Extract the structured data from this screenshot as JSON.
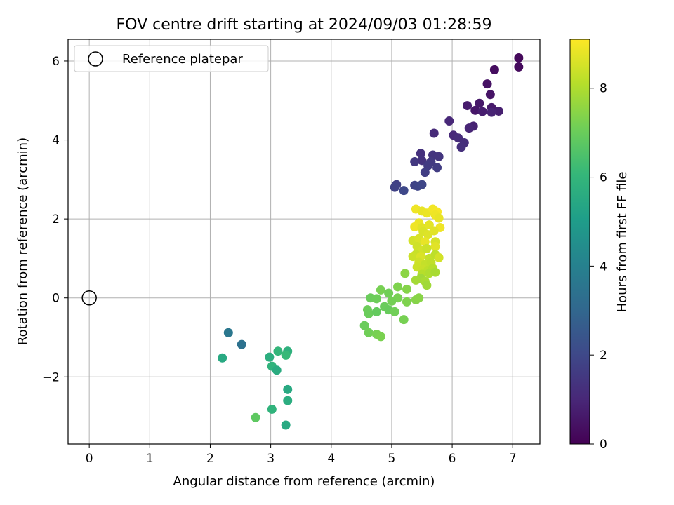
{
  "chart_data": {
    "type": "scatter",
    "title": "FOV centre drift starting at 2024/09/03 01:28:59",
    "xlabel": "Angular distance from reference (arcmin)",
    "ylabel": "Rotation from reference (arcmin)",
    "xlim": [
      -0.35,
      7.45
    ],
    "ylim": [
      -3.7,
      6.55
    ],
    "xticks": [
      0,
      1,
      2,
      3,
      4,
      5,
      6,
      7
    ],
    "yticks": [
      -2,
      0,
      2,
      4,
      6
    ],
    "grid": true,
    "legend": {
      "placement": "top-left",
      "entries": [
        "Reference platepar"
      ]
    },
    "reference_point": {
      "x": 0,
      "y": 0,
      "label": "Reference platepar"
    },
    "colorbar": {
      "label": "Hours from first FF file",
      "colormap": "viridis",
      "range": [
        0,
        9.1
      ],
      "ticks": [
        0,
        2,
        4,
        6,
        8
      ]
    },
    "colormap_stops": [
      "#440154",
      "#482878",
      "#3e4989",
      "#31688e",
      "#26828e",
      "#1f9e89",
      "#35b779",
      "#6ece58",
      "#b5de2b",
      "#fde725"
    ],
    "points": [
      {
        "x": 7.1,
        "y": 6.08,
        "c": 0.2
      },
      {
        "x": 7.1,
        "y": 5.85,
        "c": 0.25
      },
      {
        "x": 6.7,
        "y": 5.78,
        "c": 0.3
      },
      {
        "x": 6.58,
        "y": 5.42,
        "c": 0.45
      },
      {
        "x": 6.63,
        "y": 5.15,
        "c": 0.5
      },
      {
        "x": 6.45,
        "y": 4.93,
        "c": 0.6
      },
      {
        "x": 6.25,
        "y": 4.87,
        "c": 0.7
      },
      {
        "x": 6.38,
        "y": 4.75,
        "c": 0.55
      },
      {
        "x": 6.5,
        "y": 4.72,
        "c": 0.75
      },
      {
        "x": 6.65,
        "y": 4.82,
        "c": 0.65
      },
      {
        "x": 6.77,
        "y": 4.73,
        "c": 0.8
      },
      {
        "x": 6.65,
        "y": 4.7,
        "c": 0.9
      },
      {
        "x": 6.35,
        "y": 4.35,
        "c": 0.85
      },
      {
        "x": 6.28,
        "y": 4.3,
        "c": 0.95
      },
      {
        "x": 5.95,
        "y": 4.48,
        "c": 1.0
      },
      {
        "x": 5.7,
        "y": 4.17,
        "c": 1.1
      },
      {
        "x": 6.02,
        "y": 4.12,
        "c": 1.05
      },
      {
        "x": 6.1,
        "y": 4.05,
        "c": 1.15
      },
      {
        "x": 6.2,
        "y": 3.93,
        "c": 1.2
      },
      {
        "x": 6.15,
        "y": 3.82,
        "c": 1.25
      },
      {
        "x": 5.48,
        "y": 3.66,
        "c": 1.3
      },
      {
        "x": 5.68,
        "y": 3.62,
        "c": 1.4
      },
      {
        "x": 5.78,
        "y": 3.58,
        "c": 1.45
      },
      {
        "x": 5.38,
        "y": 3.45,
        "c": 1.5
      },
      {
        "x": 5.5,
        "y": 3.48,
        "c": 1.35
      },
      {
        "x": 5.65,
        "y": 3.45,
        "c": 1.55
      },
      {
        "x": 5.6,
        "y": 3.35,
        "c": 1.6
      },
      {
        "x": 5.75,
        "y": 3.3,
        "c": 1.65
      },
      {
        "x": 5.55,
        "y": 3.18,
        "c": 1.7
      },
      {
        "x": 5.08,
        "y": 2.87,
        "c": 1.75
      },
      {
        "x": 5.05,
        "y": 2.8,
        "c": 1.8
      },
      {
        "x": 5.38,
        "y": 2.85,
        "c": 1.85
      },
      {
        "x": 5.43,
        "y": 2.83,
        "c": 1.9
      },
      {
        "x": 5.5,
        "y": 2.87,
        "c": 1.95
      },
      {
        "x": 5.2,
        "y": 2.72,
        "c": 2.0
      },
      {
        "x": 2.3,
        "y": -0.88,
        "c": 3.6
      },
      {
        "x": 2.52,
        "y": -1.18,
        "c": 3.4
      },
      {
        "x": 2.2,
        "y": -1.52,
        "c": 5.5
      },
      {
        "x": 2.98,
        "y": -1.5,
        "c": 5.7
      },
      {
        "x": 3.12,
        "y": -1.35,
        "c": 6.0
      },
      {
        "x": 3.28,
        "y": -1.35,
        "c": 5.8
      },
      {
        "x": 3.25,
        "y": -1.45,
        "c": 6.1
      },
      {
        "x": 3.02,
        "y": -1.73,
        "c": 5.9
      },
      {
        "x": 3.1,
        "y": -1.83,
        "c": 5.6
      },
      {
        "x": 3.28,
        "y": -2.32,
        "c": 5.5
      },
      {
        "x": 3.28,
        "y": -2.6,
        "c": 5.65
      },
      {
        "x": 3.02,
        "y": -2.82,
        "c": 5.9
      },
      {
        "x": 2.75,
        "y": -3.03,
        "c": 6.8
      },
      {
        "x": 3.25,
        "y": -3.22,
        "c": 5.5
      },
      {
        "x": 5.22,
        "y": 0.62,
        "c": 7.5
      },
      {
        "x": 5.1,
        "y": 0.28,
        "c": 7.3
      },
      {
        "x": 5.25,
        "y": 0.22,
        "c": 7.4
      },
      {
        "x": 4.82,
        "y": 0.2,
        "c": 7.2
      },
      {
        "x": 4.95,
        "y": 0.12,
        "c": 7.1
      },
      {
        "x": 4.65,
        "y": 0.0,
        "c": 7.0
      },
      {
        "x": 4.75,
        "y": -0.02,
        "c": 7.05
      },
      {
        "x": 5.1,
        "y": 0.0,
        "c": 7.2
      },
      {
        "x": 5.25,
        "y": -0.1,
        "c": 7.3
      },
      {
        "x": 5.0,
        "y": -0.08,
        "c": 7.15
      },
      {
        "x": 5.4,
        "y": -0.05,
        "c": 7.4
      },
      {
        "x": 5.45,
        "y": 0.0,
        "c": 7.45
      },
      {
        "x": 4.88,
        "y": -0.22,
        "c": 7.0
      },
      {
        "x": 4.95,
        "y": -0.3,
        "c": 6.95
      },
      {
        "x": 5.05,
        "y": -0.35,
        "c": 7.1
      },
      {
        "x": 4.6,
        "y": -0.3,
        "c": 7.05
      },
      {
        "x": 4.62,
        "y": -0.4,
        "c": 7.0
      },
      {
        "x": 4.75,
        "y": -0.35,
        "c": 6.9
      },
      {
        "x": 5.2,
        "y": -0.55,
        "c": 7.2
      },
      {
        "x": 4.55,
        "y": -0.7,
        "c": 7.0
      },
      {
        "x": 4.62,
        "y": -0.88,
        "c": 7.1
      },
      {
        "x": 4.75,
        "y": -0.92,
        "c": 7.2
      },
      {
        "x": 4.82,
        "y": -0.98,
        "c": 7.25
      },
      {
        "x": 5.4,
        "y": 2.25,
        "c": 8.9
      },
      {
        "x": 5.5,
        "y": 2.2,
        "c": 8.8
      },
      {
        "x": 5.58,
        "y": 2.15,
        "c": 8.85
      },
      {
        "x": 5.68,
        "y": 2.25,
        "c": 8.95
      },
      {
        "x": 5.75,
        "y": 2.18,
        "c": 9.0
      },
      {
        "x": 5.72,
        "y": 2.1,
        "c": 8.9
      },
      {
        "x": 5.78,
        "y": 2.02,
        "c": 8.8
      },
      {
        "x": 5.45,
        "y": 1.9,
        "c": 8.85
      },
      {
        "x": 5.38,
        "y": 1.8,
        "c": 8.9
      },
      {
        "x": 5.5,
        "y": 1.78,
        "c": 8.7
      },
      {
        "x": 5.62,
        "y": 1.85,
        "c": 8.75
      },
      {
        "x": 5.8,
        "y": 1.78,
        "c": 8.9
      },
      {
        "x": 5.52,
        "y": 1.68,
        "c": 8.6
      },
      {
        "x": 5.6,
        "y": 1.6,
        "c": 8.65
      },
      {
        "x": 5.7,
        "y": 1.7,
        "c": 8.7
      },
      {
        "x": 5.35,
        "y": 1.45,
        "c": 8.5
      },
      {
        "x": 5.45,
        "y": 1.5,
        "c": 8.6
      },
      {
        "x": 5.55,
        "y": 1.42,
        "c": 8.8
      },
      {
        "x": 5.72,
        "y": 1.42,
        "c": 8.55
      },
      {
        "x": 5.72,
        "y": 1.3,
        "c": 8.7
      },
      {
        "x": 5.42,
        "y": 1.3,
        "c": 8.45
      },
      {
        "x": 5.5,
        "y": 1.2,
        "c": 8.5
      },
      {
        "x": 5.58,
        "y": 1.25,
        "c": 8.4
      },
      {
        "x": 5.4,
        "y": 1.1,
        "c": 8.35
      },
      {
        "x": 5.35,
        "y": 1.05,
        "c": 8.4
      },
      {
        "x": 5.48,
        "y": 1.05,
        "c": 8.6
      },
      {
        "x": 5.62,
        "y": 1.0,
        "c": 8.3
      },
      {
        "x": 5.72,
        "y": 1.1,
        "c": 8.2
      },
      {
        "x": 5.78,
        "y": 1.02,
        "c": 8.5
      },
      {
        "x": 5.45,
        "y": 0.9,
        "c": 8.45
      },
      {
        "x": 5.55,
        "y": 0.85,
        "c": 8.3
      },
      {
        "x": 5.65,
        "y": 0.9,
        "c": 8.25
      },
      {
        "x": 5.42,
        "y": 0.78,
        "c": 8.4
      },
      {
        "x": 5.52,
        "y": 0.72,
        "c": 8.35
      },
      {
        "x": 5.6,
        "y": 0.7,
        "c": 8.2
      },
      {
        "x": 5.68,
        "y": 0.75,
        "c": 8.1
      },
      {
        "x": 5.5,
        "y": 0.6,
        "c": 8.1
      },
      {
        "x": 5.62,
        "y": 0.62,
        "c": 8.0
      },
      {
        "x": 5.72,
        "y": 0.65,
        "c": 7.9
      },
      {
        "x": 5.48,
        "y": 0.5,
        "c": 7.8
      },
      {
        "x": 5.4,
        "y": 0.45,
        "c": 7.85
      },
      {
        "x": 5.55,
        "y": 0.42,
        "c": 7.9
      },
      {
        "x": 5.58,
        "y": 0.32,
        "c": 7.8
      }
    ]
  }
}
